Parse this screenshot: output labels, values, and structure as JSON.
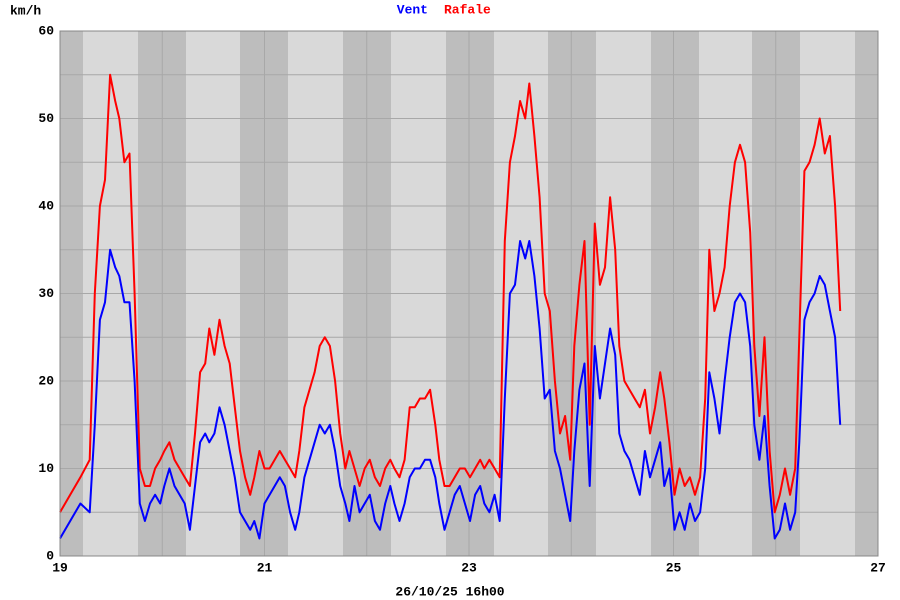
{
  "chart_data": {
    "type": "line",
    "ylabel": "km/h",
    "footer": "26/10/25 16h00",
    "xlim": [
      19,
      27
    ],
    "xticks": [
      19,
      21,
      23,
      25,
      27
    ],
    "x_minor_ticks": [
      20,
      22,
      24,
      26
    ],
    "ylim": [
      0,
      60
    ],
    "yticks": [
      0,
      10,
      20,
      30,
      40,
      50,
      60
    ],
    "y_minor_ticks": [
      5,
      15,
      25,
      35,
      45,
      55
    ],
    "grid": true,
    "x": [
      19.0,
      19.1,
      19.2,
      19.29,
      19.34,
      19.39,
      19.44,
      19.49,
      19.54,
      19.58,
      19.63,
      19.68,
      19.73,
      19.78,
      19.83,
      19.88,
      19.93,
      19.98,
      20.02,
      20.07,
      20.12,
      20.17,
      20.22,
      20.27,
      20.32,
      20.37,
      20.42,
      20.46,
      20.51,
      20.56,
      20.61,
      20.66,
      20.71,
      20.76,
      20.81,
      20.86,
      20.9,
      20.95,
      21.0,
      21.05,
      21.1,
      21.15,
      21.2,
      21.25,
      21.3,
      21.34,
      21.39,
      21.44,
      21.49,
      21.54,
      21.59,
      21.64,
      21.69,
      21.74,
      21.79,
      21.83,
      21.88,
      21.93,
      21.98,
      22.03,
      22.08,
      22.13,
      22.18,
      22.23,
      22.27,
      22.32,
      22.37,
      22.42,
      22.47,
      22.52,
      22.57,
      22.62,
      22.67,
      22.71,
      22.76,
      22.81,
      22.86,
      22.91,
      22.96,
      23.01,
      23.06,
      23.11,
      23.15,
      23.2,
      23.25,
      23.3,
      23.35,
      23.4,
      23.45,
      23.5,
      23.55,
      23.59,
      23.64,
      23.69,
      23.74,
      23.79,
      23.84,
      23.89,
      23.94,
      23.99,
      24.03,
      24.08,
      24.13,
      24.18,
      24.23,
      24.28,
      24.33,
      24.38,
      24.43,
      24.47,
      24.52,
      24.57,
      24.62,
      24.67,
      24.72,
      24.77,
      24.82,
      24.87,
      24.91,
      24.96,
      25.01,
      25.06,
      25.11,
      25.16,
      25.21,
      25.26,
      25.31,
      25.35,
      25.4,
      25.45,
      25.5,
      25.55,
      25.6,
      25.65,
      25.7,
      25.75,
      25.79,
      25.84,
      25.89,
      25.94,
      25.99,
      26.04,
      26.09,
      26.14,
      26.19,
      26.23,
      26.28,
      26.33,
      26.38,
      26.43,
      26.48,
      26.53,
      26.58,
      26.63
    ],
    "series": [
      {
        "name": "Vent",
        "color": "#0000ff",
        "values": [
          2,
          4,
          6,
          5,
          15,
          27,
          29,
          35,
          33,
          32,
          29,
          29,
          20,
          6,
          4,
          6,
          7,
          6,
          8,
          10,
          8,
          7,
          6,
          3,
          8,
          13,
          14,
          13,
          14,
          17,
          15,
          12,
          9,
          5,
          4,
          3,
          4,
          2,
          6,
          7,
          8,
          9,
          8,
          5,
          3,
          5,
          9,
          11,
          13,
          15,
          14,
          15,
          12,
          8,
          6,
          4,
          8,
          5,
          6,
          7,
          4,
          3,
          6,
          8,
          6,
          4,
          6,
          9,
          10,
          10,
          11,
          11,
          9,
          6,
          3,
          5,
          7,
          8,
          6,
          4,
          7,
          8,
          6,
          5,
          7,
          4,
          18,
          30,
          31,
          36,
          34,
          36,
          32,
          26,
          18,
          19,
          12,
          10,
          7,
          4,
          12,
          19,
          22,
          8,
          24,
          18,
          22,
          26,
          23,
          14,
          12,
          11,
          9,
          7,
          12,
          9,
          11,
          13,
          8,
          10,
          3,
          5,
          3,
          6,
          4,
          5,
          10,
          21,
          18,
          14,
          20,
          25,
          29,
          30,
          29,
          24,
          15,
          11,
          16,
          8,
          2,
          3,
          6,
          3,
          5,
          13,
          27,
          29,
          30,
          32,
          31,
          28,
          25,
          15
        ]
      },
      {
        "name": "Rafale",
        "color": "#ff0000",
        "values": [
          5,
          7,
          9,
          11,
          30,
          40,
          43,
          55,
          52,
          50,
          45,
          46,
          30,
          10,
          8,
          8,
          10,
          11,
          12,
          13,
          11,
          10,
          9,
          8,
          14,
          21,
          22,
          26,
          23,
          27,
          24,
          22,
          17,
          12,
          9,
          7,
          9,
          12,
          10,
          10,
          11,
          12,
          11,
          10,
          9,
          12,
          17,
          19,
          21,
          24,
          25,
          24,
          20,
          14,
          10,
          12,
          10,
          8,
          10,
          11,
          9,
          8,
          10,
          11,
          10,
          9,
          11,
          17,
          17,
          18,
          18,
          19,
          15,
          11,
          8,
          8,
          9,
          10,
          10,
          9,
          10,
          11,
          10,
          11,
          10,
          9,
          36,
          45,
          48,
          52,
          50,
          54,
          48,
          41,
          30,
          28,
          20,
          14,
          16,
          11,
          24,
          31,
          36,
          15,
          38,
          31,
          33,
          41,
          35,
          24,
          20,
          19,
          18,
          17,
          19,
          14,
          17,
          21,
          18,
          13,
          7,
          10,
          8,
          9,
          7,
          9,
          18,
          35,
          28,
          30,
          33,
          40,
          45,
          47,
          45,
          37,
          24,
          16,
          25,
          12,
          5,
          7,
          10,
          7,
          10,
          25,
          44,
          45,
          47,
          50,
          46,
          48,
          40,
          28
        ]
      }
    ]
  }
}
